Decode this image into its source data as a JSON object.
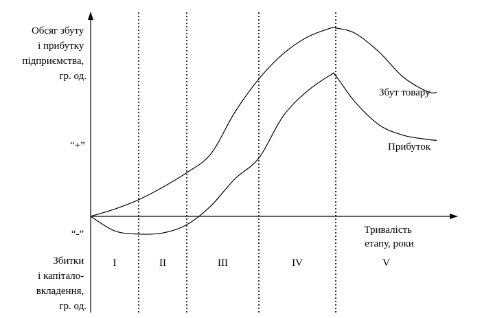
{
  "chart_data": {
    "type": "line",
    "title": "",
    "ylabel_lines": [
      "Обсяг збуту",
      "і прибутку",
      "підприємства,",
      "гр. од."
    ],
    "ylabel_negative_lines": [
      "Збитки",
      "і капітало-",
      "вкладення,",
      "гр. од."
    ],
    "xlabel_lines": [
      "Тривалість",
      "етапу, роки"
    ],
    "plus_label": "“+”",
    "minus_label": "“-”",
    "stages": [
      "I",
      "II",
      "III",
      "IV",
      "V"
    ],
    "stage_boundaries": [
      1.0,
      2.0,
      3.5,
      5.1
    ],
    "xlim": [
      0,
      7.6
    ],
    "ylim": [
      -40,
      100
    ],
    "series": [
      {
        "name": "Збут товару",
        "x": [
          0,
          0.5,
          1.0,
          1.5,
          2.0,
          2.5,
          3.0,
          3.5,
          4.0,
          4.5,
          5.0,
          5.1,
          5.5,
          6.0,
          6.5,
          7.0,
          7.2
        ],
        "values": [
          0,
          3.5,
          8,
          14,
          21,
          30,
          50,
          66,
          78,
          86,
          90.5,
          90.5,
          88,
          79,
          67,
          60,
          59.5
        ]
      },
      {
        "name": "Прибуток",
        "x": [
          0,
          0.5,
          1.0,
          1.5,
          2.0,
          2.5,
          3.0,
          3.5,
          4.0,
          4.5,
          5.0,
          5.1,
          5.5,
          6.0,
          6.5,
          7.0,
          7.2
        ],
        "values": [
          0,
          -7,
          -8.5,
          -8,
          -4,
          5,
          18,
          28,
          48,
          60,
          68,
          67.5,
          55,
          44,
          39,
          37,
          36.5
        ]
      }
    ]
  }
}
